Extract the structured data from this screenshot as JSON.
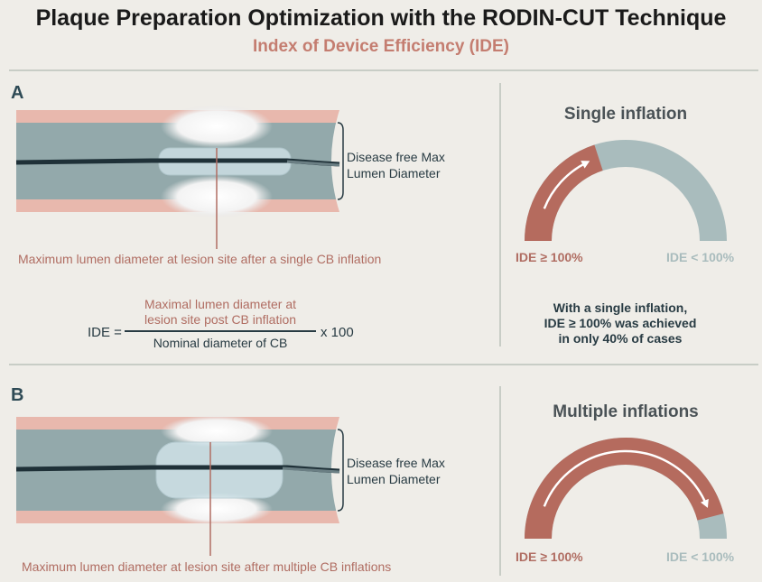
{
  "title": "Plaque Preparation Optimization with the RODIN-CUT Technique",
  "subtitle": "Index of Device Efficiency (IDE)",
  "colors": {
    "vessel_wall": "#e8b8ad",
    "lumen": "#93a9ab",
    "balloon": "#cfe2e8",
    "arc_red": "#b56b5e",
    "arc_gray": "#a9bcbd",
    "text_red": "#b06d62",
    "text_dark": "#283b43"
  },
  "panel_a": {
    "letter": "A",
    "max_diameter_label_line1": "Disease free Max",
    "max_diameter_label_line2": "Lumen Diameter",
    "lesion_label": "Maximum lumen diameter at lesion site after a single CB inflation",
    "formula": {
      "lhs": "IDE =",
      "numerator_line1": "Maximal lumen diameter at",
      "numerator_line2": "lesion site post CB inflation",
      "denominator": "Nominal diameter of CB",
      "multiplier": "x 100"
    },
    "gauge": {
      "title": "Single inflation",
      "left_label": "IDE ≥ 100%",
      "right_label": "IDE < 100%",
      "fraction_ge_100": 0.4,
      "note_line1": "With a single inflation,",
      "note_line2": "IDE ≥ 100% was achieved",
      "note_line3": "in only 40% of cases"
    }
  },
  "panel_b": {
    "letter": "B",
    "max_diameter_label_line1": "Disease free Max",
    "max_diameter_label_line2": "Lumen Diameter",
    "lesion_label": "Maximum lumen diameter at lesion site after multiple CB inflations",
    "gauge": {
      "title": "Multiple inflations",
      "left_label": "IDE ≥ 100%",
      "right_label": "IDE < 100%",
      "fraction_ge_100": 0.92
    }
  }
}
